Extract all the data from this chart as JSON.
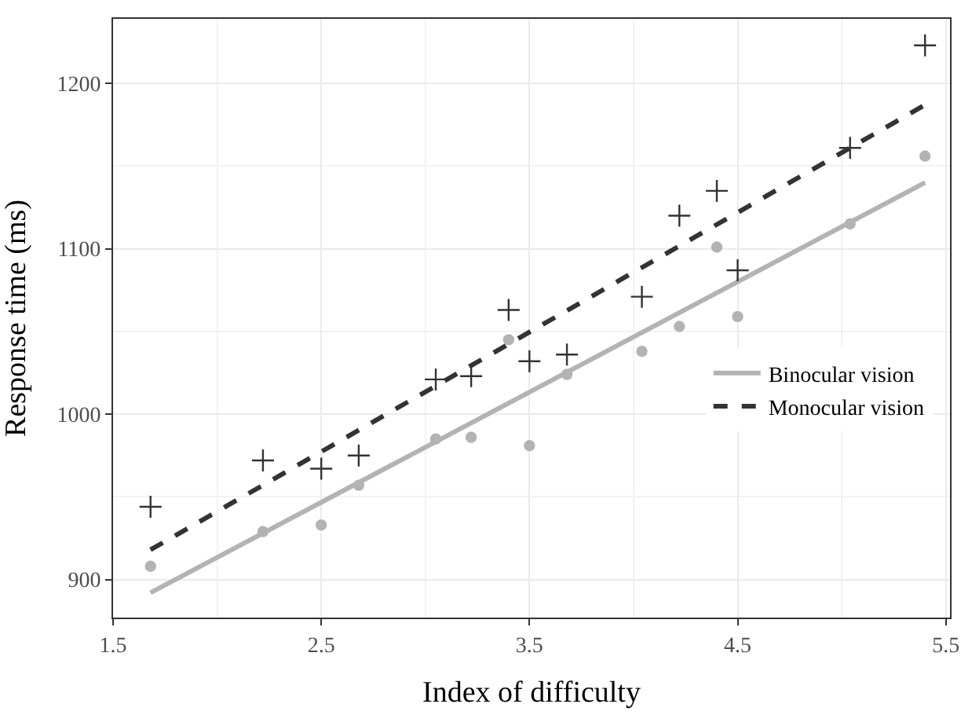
{
  "chart_data": {
    "type": "scatter",
    "xlabel": "Index of difficulty",
    "ylabel": "Response time (ms)",
    "xlim": [
      1.5,
      5.52
    ],
    "xticks": [
      1.5,
      2.5,
      3.5,
      4.5,
      5.5
    ],
    "ylim": [
      877,
      1239
    ],
    "yticks": [
      900,
      1000,
      1100,
      1200
    ],
    "grid": true,
    "legend": "right",
    "series": [
      {
        "color": "#b3b3b3",
        "marker": "circle",
        "x": [
          1.68,
          2.22,
          2.5,
          2.68,
          3.05,
          3.22,
          3.4,
          3.5,
          3.68,
          4.04,
          4.22,
          4.4,
          4.5,
          5.04,
          5.4
        ],
        "values": [
          908,
          929,
          933,
          957,
          985,
          986,
          1045,
          981,
          1024,
          1038,
          1053,
          1101,
          1059,
          1115,
          1156
        ]
      },
      {
        "color": "#333333",
        "marker": "cross",
        "x": [
          1.68,
          2.22,
          2.5,
          2.68,
          3.05,
          3.22,
          3.4,
          3.5,
          3.68,
          4.04,
          4.22,
          4.4,
          4.5,
          5.04,
          5.4
        ],
        "values": [
          944,
          972,
          967,
          975,
          1021,
          1023,
          1063,
          1032,
          1036,
          1071,
          1120,
          1135,
          1087,
          1161,
          1223
        ]
      },
      {
        "type": "line",
        "name": "Binocular vision",
        "color": "#b3b3b3",
        "line_style": "solid",
        "x": [
          1.68,
          5.4
        ],
        "values": [
          892,
          1140
        ]
      },
      {
        "type": "line",
        "name": "Monocular vision",
        "color": "#333333",
        "line_style": "dashed",
        "x": [
          1.68,
          5.4
        ],
        "values": [
          918,
          1187
        ]
      }
    ]
  }
}
